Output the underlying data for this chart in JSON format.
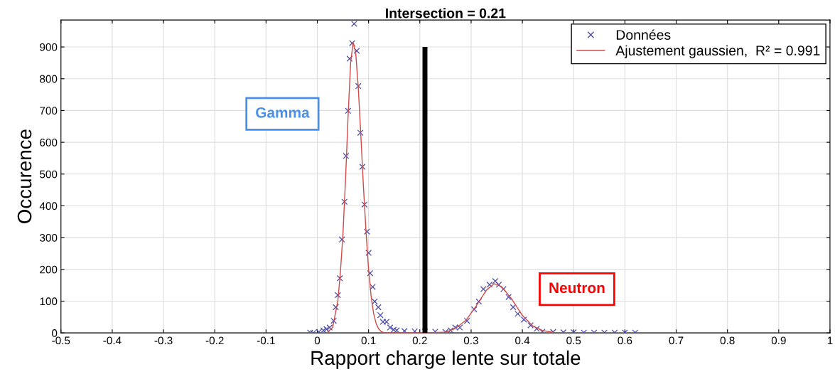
{
  "chart_data": {
    "type": "scatter",
    "title": "Intersection = 0.21",
    "xlabel": "Rapport charge lente sur totale",
    "ylabel": "Occurence",
    "xlim": [
      -0.5,
      1
    ],
    "ylim": [
      0,
      985
    ],
    "xticks": [
      -0.5,
      -0.4,
      -0.3,
      -0.2,
      -0.1,
      0,
      0.1,
      0.2,
      0.3,
      0.4,
      0.5,
      0.6,
      0.7,
      0.8,
      0.9,
      1
    ],
    "yticks": [
      0,
      100,
      200,
      300,
      400,
      500,
      600,
      700,
      800,
      900
    ],
    "grid": true,
    "legend": "top right",
    "series": [
      {
        "name": "Données",
        "marker": "cross",
        "color": "#4a4aa8",
        "x": [
          -0.014,
          -0.008,
          0.003,
          0.012,
          0.018,
          0.024,
          0.032,
          0.036,
          0.04,
          0.044,
          0.048,
          0.053,
          0.056,
          0.06,
          0.063,
          0.068,
          0.072,
          0.077,
          0.08,
          0.084,
          0.088,
          0.092,
          0.097,
          0.1,
          0.103,
          0.108,
          0.112,
          0.119,
          0.123,
          0.128,
          0.135,
          0.142,
          0.149,
          0.155,
          0.17,
          0.19,
          0.21,
          0.23,
          0.25,
          0.26,
          0.269,
          0.278,
          0.292,
          0.306,
          0.315,
          0.324,
          0.336,
          0.347,
          0.354,
          0.363,
          0.373,
          0.382,
          0.391,
          0.403,
          0.416,
          0.428,
          0.439,
          0.46,
          0.48,
          0.5,
          0.52,
          0.54,
          0.56,
          0.58,
          0.6,
          0.62
        ],
        "values": [
          1,
          0,
          3,
          8,
          12,
          17,
          38,
          81,
          119,
          172,
          294,
          413,
          557,
          699,
          863,
          912,
          973,
          888,
          777,
          630,
          523,
          404,
          319,
          252,
          188,
          145,
          99,
          81,
          56,
          35,
          35,
          17,
          10,
          8,
          6,
          5,
          4,
          4,
          3,
          8,
          17,
          17,
          38,
          74,
          99,
          138,
          152,
          163,
          152,
          138,
          113,
          81,
          60,
          42,
          24,
          13,
          4,
          3,
          2,
          2,
          1,
          1,
          1,
          1,
          1,
          1
        ]
      },
      {
        "name": "Ajustement gaussien,  R² = 0.991",
        "type": "line",
        "marker": "none",
        "line_style": "solid",
        "color": "#d04a4a",
        "x": [
          0.02,
          0.03,
          0.04,
          0.045,
          0.05,
          0.055,
          0.06,
          0.065,
          0.07,
          0.075,
          0.08,
          0.085,
          0.09,
          0.095,
          0.1,
          0.105,
          0.11,
          0.115,
          0.12,
          0.125,
          0.13,
          0.14,
          0.2,
          0.25,
          0.27,
          0.29,
          0.31,
          0.33,
          0.345,
          0.36,
          0.38,
          0.4,
          0.42,
          0.44,
          0.46
        ],
        "values": [
          2,
          18,
          100,
          190,
          310,
          480,
          680,
          850,
          915,
          880,
          770,
          620,
          460,
          320,
          200,
          115,
          60,
          28,
          12,
          4,
          1,
          0,
          0,
          2,
          15,
          40,
          85,
          135,
          155,
          145,
          105,
          55,
          22,
          7,
          2
        ]
      }
    ],
    "ref_lines": [
      {
        "axis": "x",
        "value": 0.21,
        "color": "#000000"
      }
    ],
    "annotations": [
      "Gamma",
      "Neutron"
    ]
  }
}
